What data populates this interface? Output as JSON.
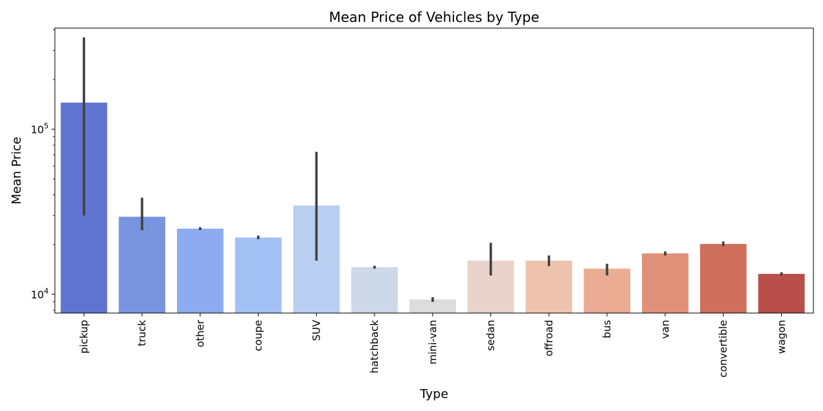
{
  "chart_data": {
    "type": "bar",
    "title": "Mean Price of Vehicles by Type",
    "xlabel": "Type",
    "ylabel": "Mean Price",
    "yscale": "log",
    "ylim": [
      7700,
      410000
    ],
    "y_ticks": [
      {
        "value": 10000,
        "base": "10",
        "exp": "4"
      },
      {
        "value": 100000,
        "base": "10",
        "exp": "5"
      }
    ],
    "grid": false,
    "legend": "none",
    "categories": [
      "pickup",
      "truck",
      "other",
      "coupe",
      "SUV",
      "hatchback",
      "mini-van",
      "sedan",
      "offroad",
      "bus",
      "van",
      "convertible",
      "wagon"
    ],
    "values": [
      145000,
      29500,
      25000,
      22100,
      34500,
      14600,
      9300,
      16000,
      16000,
      14300,
      17700,
      20200,
      13300
    ],
    "ci_low": [
      30000,
      24500,
      24500,
      21600,
      16000,
      14300,
      9000,
      13000,
      14800,
      13000,
      17200,
      19600,
      13000
    ],
    "ci_high": [
      360000,
      38500,
      25500,
      22700,
      73000,
      14900,
      9600,
      20500,
      17200,
      15300,
      18200,
      20900,
      13600
    ],
    "colors": [
      "#6075cf",
      "#7894de",
      "#8dabee",
      "#a3c0f5",
      "#b9cff2",
      "#cdd9e8",
      "#dddcdc",
      "#e9d3ca",
      "#eec3ad",
      "#eaad93",
      "#e0917a",
      "#cf6f5d",
      "#b84f4a"
    ],
    "error_bar_color": "#404040"
  }
}
